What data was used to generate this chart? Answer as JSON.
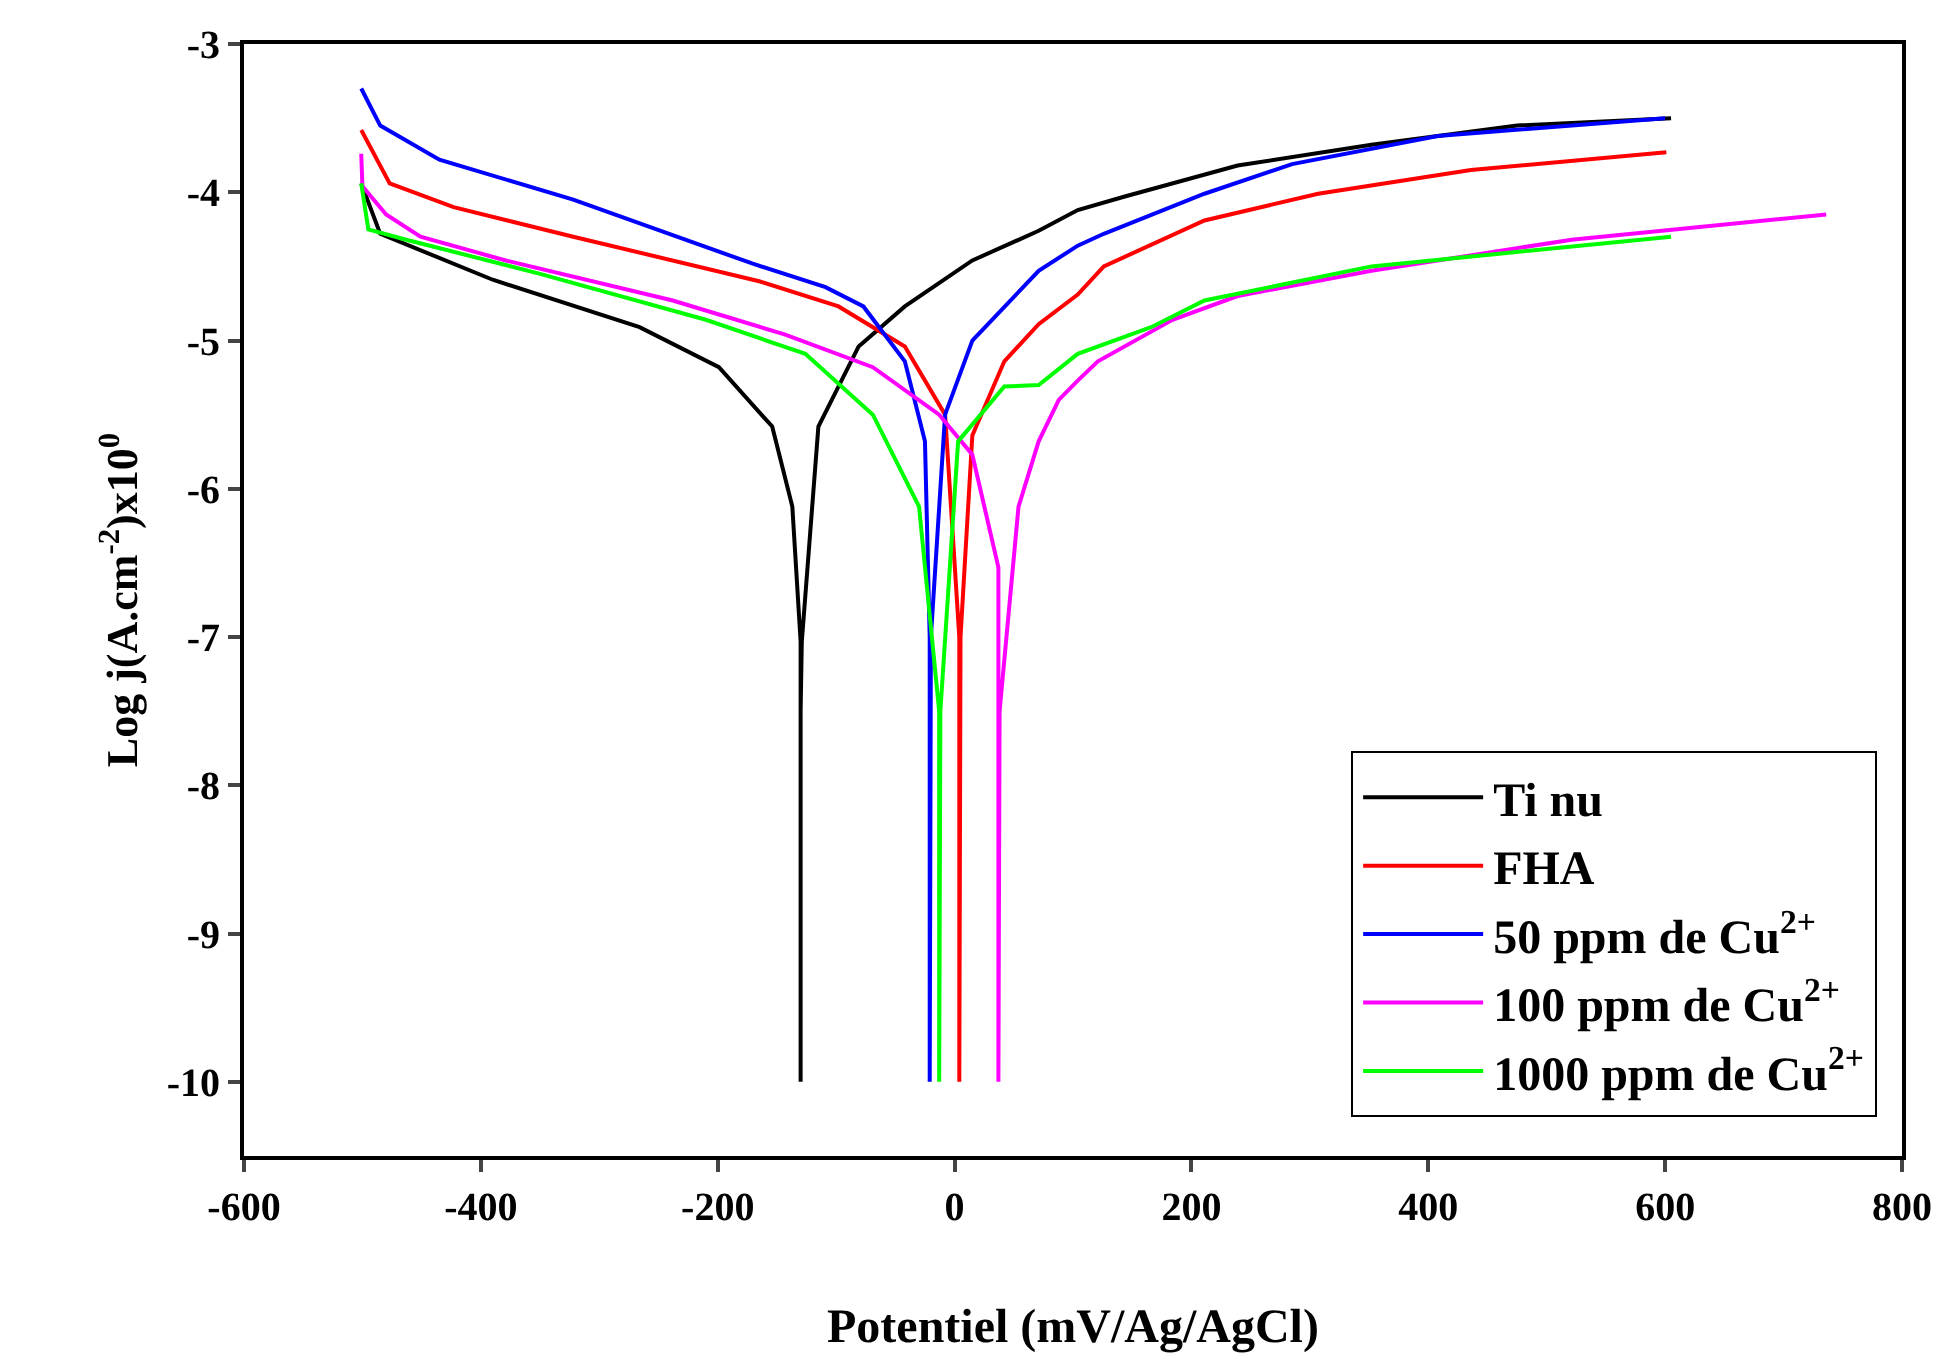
{
  "chart_data": {
    "type": "line",
    "xlabel": "Potentiel (mV/Ag/AgCl)",
    "ylabel": "Log j(A.cm$^{-2}$)x10$^{0}$",
    "xlim": [
      -600,
      800
    ],
    "ylim": [
      -10.5,
      -3
    ],
    "xticks": [
      -600,
      -400,
      -200,
      0,
      200,
      400,
      600,
      800
    ],
    "yticks": [
      -10,
      -9,
      -8,
      -7,
      -6,
      -5,
      -4,
      -3
    ],
    "legend": "bottom right",
    "marker": "none",
    "line_style": "solid",
    "series": [
      {
        "name": "Ti nu",
        "color": "#000000",
        "x": [
          -501,
          -485,
          -390,
          -266,
          -199,
          -154,
          -137,
          -130,
          -130,
          -130,
          -129,
          -115,
          -81,
          -42,
          15,
          71,
          104,
          143,
          239,
          352,
          475,
          605
        ],
        "values": [
          -3.94,
          -4.28,
          -4.59,
          -4.91,
          -5.18,
          -5.58,
          -6.12,
          -7.03,
          -10,
          -7.5,
          -7.03,
          -5.58,
          -5.04,
          -4.77,
          -4.46,
          -4.26,
          -4.12,
          -4.03,
          -3.82,
          -3.68,
          -3.55,
          -3.5
        ]
      },
      {
        "name": "FHA",
        "color": "#ff0000",
        "x": [
          -501,
          -477,
          -423,
          -322,
          -165,
          -98,
          -42,
          -8,
          4,
          4,
          5,
          15,
          42,
          71,
          104,
          126,
          211,
          307,
          436,
          601
        ],
        "values": [
          -3.58,
          -3.94,
          -4.1,
          -4.3,
          -4.6,
          -4.77,
          -5.04,
          -5.5,
          -7,
          -10,
          -7,
          -5.64,
          -5.14,
          -4.89,
          -4.69,
          -4.5,
          -4.19,
          -4.01,
          -3.85,
          -3.73
        ]
      },
      {
        "name": "50 ppm de Cu$^{2+}$",
        "color": "#0000ff",
        "x": [
          -501,
          -485,
          -435,
          -322,
          -171,
          -109,
          -77,
          -42,
          -25,
          -21,
          -21,
          -20,
          -8,
          15,
          71,
          104,
          126,
          211,
          285,
          408,
          600
        ],
        "values": [
          -3.3,
          -3.55,
          -3.78,
          -4.05,
          -4.48,
          -4.64,
          -4.77,
          -5.14,
          -5.68,
          -7,
          -10,
          -7,
          -5.5,
          -5.0,
          -4.53,
          -4.36,
          -4.28,
          -4.01,
          -3.81,
          -3.62,
          -3.5
        ]
      },
      {
        "name": "100 ppm de Cu$^{2+}$",
        "color": "#ff00ff",
        "x": [
          -501,
          -500,
          -480,
          -451,
          -379,
          -238,
          -143,
          -69,
          -13,
          15,
          37,
          37,
          37,
          38,
          54,
          71,
          88,
          104,
          121,
          184,
          239,
          352,
          521,
          736
        ],
        "values": [
          -3.74,
          -3.96,
          -4.15,
          -4.3,
          -4.46,
          -4.73,
          -4.96,
          -5.18,
          -5.5,
          -5.77,
          -6.53,
          -7.5,
          -10,
          -7.5,
          -6.12,
          -5.68,
          -5.4,
          -5.27,
          -5.14,
          -4.86,
          -4.7,
          -4.53,
          -4.32,
          -4.15
        ]
      },
      {
        "name": "1000 ppm de Cu$^{2+}$",
        "color": "#00ff00",
        "x": [
          -501,
          -495,
          -463,
          -350,
          -210,
          -126,
          -69,
          -30,
          -13,
          -13,
          -12,
          3,
          42,
          71,
          104,
          166,
          211,
          352,
          605
        ],
        "values": [
          -3.94,
          -4.25,
          -4.32,
          -4.55,
          -4.86,
          -5.09,
          -5.5,
          -6.12,
          -7.5,
          -10,
          -7.5,
          -5.68,
          -5.31,
          -5.3,
          -5.09,
          -4.91,
          -4.73,
          -4.5,
          -4.3
        ]
      }
    ]
  }
}
